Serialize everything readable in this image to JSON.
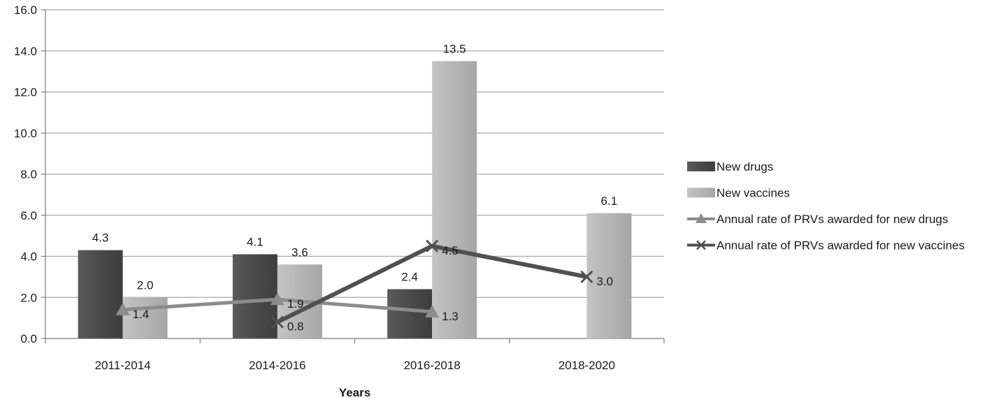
{
  "chart_data": {
    "type": "bar",
    "title": "",
    "xlabel": "Years",
    "ylabel": "",
    "ylim": [
      0,
      16
    ],
    "yticks": [
      "0.0",
      "2.0",
      "4.0",
      "6.0",
      "8.0",
      "10.0",
      "12.0",
      "14.0",
      "16.0"
    ],
    "grid": true,
    "legend_position": "right",
    "categories": [
      "2011-2014",
      "2014-2016",
      "2016-2018",
      "2018-2020"
    ],
    "series": [
      {
        "name": "New drugs",
        "kind": "bar",
        "color": "#4d4d4d",
        "values": [
          4.3,
          4.1,
          2.4,
          null
        ],
        "labels": [
          "4.3",
          "4.1",
          "2.4",
          ""
        ]
      },
      {
        "name": "New vaccines",
        "kind": "bar",
        "color": "#b3b3b3",
        "values": [
          2.0,
          3.6,
          13.5,
          6.1
        ],
        "labels": [
          "2.0",
          "3.6",
          "13.5",
          "6.1"
        ]
      },
      {
        "name": "Annual rate of PRVs awarded for new drugs",
        "kind": "line",
        "marker": "triangle",
        "color": "#8c8c8c",
        "values": [
          1.4,
          1.9,
          1.3,
          null
        ],
        "labels": [
          "1.4",
          "1.9",
          "1.3",
          ""
        ]
      },
      {
        "name": "Annual rate of PRVs awarded for new vaccines",
        "kind": "line",
        "marker": "x",
        "color": "#505050",
        "values": [
          null,
          0.8,
          4.5,
          3.0
        ],
        "labels": [
          "",
          "0.8",
          "4.5",
          "3.0"
        ]
      }
    ]
  }
}
